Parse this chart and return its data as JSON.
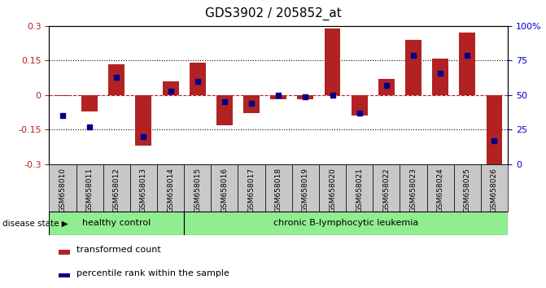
{
  "title": "GDS3902 / 205852_at",
  "samples": [
    "GSM658010",
    "GSM658011",
    "GSM658012",
    "GSM658013",
    "GSM658014",
    "GSM658015",
    "GSM658016",
    "GSM658017",
    "GSM658018",
    "GSM658019",
    "GSM658020",
    "GSM658021",
    "GSM658022",
    "GSM658023",
    "GSM658024",
    "GSM658025",
    "GSM658026"
  ],
  "red_bars": [
    -0.005,
    -0.07,
    0.135,
    -0.22,
    0.06,
    0.14,
    -0.13,
    -0.08,
    -0.02,
    -0.02,
    0.29,
    -0.09,
    0.07,
    0.24,
    0.16,
    0.27,
    -0.3
  ],
  "blue_dots_pct": [
    35,
    27,
    63,
    20,
    53,
    60,
    45,
    44,
    50,
    49,
    50,
    37,
    57,
    79,
    66,
    79,
    17
  ],
  "healthy_count": 5,
  "group1_label": "healthy control",
  "group2_label": "chronic B-lymphocytic leukemia",
  "disease_state_label": "disease state",
  "legend_red": "transformed count",
  "legend_blue": "percentile rank within the sample",
  "ylim_left": [
    -0.3,
    0.3
  ],
  "ylim_right": [
    0,
    100
  ],
  "yticks_left": [
    -0.3,
    -0.15,
    0,
    0.15,
    0.3
  ],
  "yticks_right": [
    0,
    25,
    50,
    75,
    100
  ],
  "bar_color": "#b22222",
  "dot_color": "#00008b",
  "bg_color": "#ffffff",
  "tick_color_left": "#b22222",
  "tick_color_right": "#0000cc",
  "healthy_bg": "#90ee90",
  "leukemia_bg": "#90ee90",
  "label_area_bg": "#c8c8c8"
}
